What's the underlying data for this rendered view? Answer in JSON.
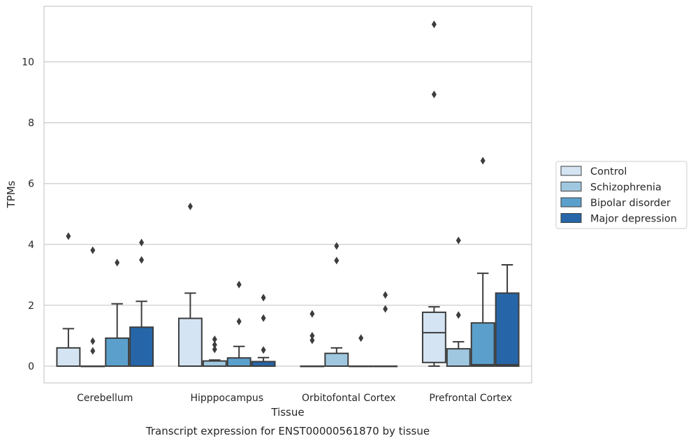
{
  "chart_data": {
    "type": "boxplot",
    "caption": "Transcript expression for ENST00000561870 by tissue",
    "xlabel": "Tissue",
    "ylabel": "TPMs",
    "ylim": [
      -0.55,
      11.8
    ],
    "yticks": [
      0,
      2,
      4,
      6,
      8,
      10
    ],
    "grid": "horizontal",
    "legend_position": "right",
    "categories": [
      "Cerebellum",
      "Hipppocampus",
      "Orbitofontal Cortex",
      "Prefrontal Cortex"
    ],
    "series": [
      {
        "name": "Control",
        "color": "#d4e4f3",
        "boxes": [
          {
            "q1": 0,
            "median": 0,
            "q3": 0.6,
            "whisker_low": 0,
            "whisker_high": 1.23,
            "outliers": [
              4.27
            ]
          },
          {
            "q1": 0,
            "median": 0,
            "q3": 1.57,
            "whisker_low": 0,
            "whisker_high": 2.4,
            "outliers": [
              5.25
            ]
          },
          {
            "q1": 0,
            "median": 0,
            "q3": 0,
            "whisker_low": 0,
            "whisker_high": 0,
            "outliers": [
              0.85,
              1.0,
              1.72
            ]
          },
          {
            "q1": 0.12,
            "median": 1.1,
            "q3": 1.77,
            "whisker_low": 0,
            "whisker_high": 1.95,
            "outliers": [
              8.93,
              11.23
            ]
          }
        ]
      },
      {
        "name": "Schizophrenia",
        "color": "#9fc8e0",
        "boxes": [
          {
            "q1": 0,
            "median": 0,
            "q3": 0,
            "whisker_low": 0,
            "whisker_high": 0,
            "outliers": [
              0.5,
              0.82,
              3.81
            ]
          },
          {
            "q1": 0,
            "median": 0,
            "q3": 0.17,
            "whisker_low": 0,
            "whisker_high": 0.2,
            "outliers": [
              0.55,
              0.7,
              0.88
            ]
          },
          {
            "q1": 0,
            "median": 0,
            "q3": 0.42,
            "whisker_low": 0,
            "whisker_high": 0.6,
            "outliers": [
              3.47,
              3.95
            ]
          },
          {
            "q1": 0,
            "median": 0,
            "q3": 0.57,
            "whisker_low": 0,
            "whisker_high": 0.8,
            "outliers": [
              1.68,
              4.13
            ]
          }
        ]
      },
      {
        "name": "Bipolar disorder",
        "color": "#5ba0cc",
        "boxes": [
          {
            "q1": 0,
            "median": 0,
            "q3": 0.92,
            "whisker_low": 0,
            "whisker_high": 2.05,
            "outliers": [
              3.4
            ]
          },
          {
            "q1": 0,
            "median": 0,
            "q3": 0.27,
            "whisker_low": 0,
            "whisker_high": 0.65,
            "outliers": [
              1.47,
              2.68
            ]
          },
          {
            "q1": 0,
            "median": 0,
            "q3": 0,
            "whisker_low": 0,
            "whisker_high": 0,
            "outliers": [
              0.92
            ]
          },
          {
            "q1": 0,
            "median": 0.05,
            "q3": 1.42,
            "whisker_low": 0,
            "whisker_high": 3.05,
            "outliers": [
              6.75
            ]
          }
        ]
      },
      {
        "name": "Major depression",
        "color": "#2666a8",
        "boxes": [
          {
            "q1": 0,
            "median": 0,
            "q3": 1.28,
            "whisker_low": 0,
            "whisker_high": 2.13,
            "outliers": [
              3.49,
              4.06
            ]
          },
          {
            "q1": 0,
            "median": 0,
            "q3": 0.15,
            "whisker_low": 0,
            "whisker_high": 0.28,
            "outliers": [
              0.53,
              1.58,
              2.25
            ]
          },
          {
            "q1": 0,
            "median": 0,
            "q3": 0,
            "whisker_low": 0,
            "whisker_high": 0,
            "outliers": [
              1.88,
              2.34
            ]
          },
          {
            "q1": 0,
            "median": 0.05,
            "q3": 2.4,
            "whisker_low": 0,
            "whisker_high": 3.33,
            "outliers": []
          }
        ]
      }
    ]
  }
}
